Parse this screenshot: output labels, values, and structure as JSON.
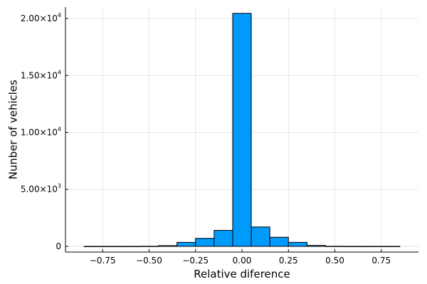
{
  "chart_data": {
    "type": "bar",
    "xlabel": "Relative diference",
    "ylabel": "Nunber of vehicles",
    "bin_edges": [
      -0.85,
      -0.75,
      -0.65,
      -0.55,
      -0.45,
      -0.35,
      -0.25,
      -0.15,
      -0.05,
      0.05,
      0.15,
      0.25,
      0.35,
      0.45,
      0.55,
      0.65,
      0.75,
      0.85
    ],
    "values": [
      0,
      0,
      0,
      10,
      60,
      350,
      700,
      1400,
      20450,
      1700,
      800,
      350,
      80,
      10,
      0,
      0,
      0
    ],
    "xlim": [
      -0.95,
      0.95
    ],
    "ylim": [
      -500,
      21000
    ],
    "xticks": [
      -0.75,
      -0.5,
      -0.25,
      0.0,
      0.25,
      0.5,
      0.75
    ],
    "xtick_labels": [
      "−0.75",
      "−0.50",
      "−0.25",
      "0.00",
      "0.25",
      "0.50",
      "0.75"
    ],
    "yticks": [
      0,
      5000,
      10000,
      15000,
      20000
    ],
    "ytick_labels": [
      {
        "base": "0",
        "exp": ""
      },
      {
        "base": "5.00×10",
        "exp": "3"
      },
      {
        "base": "1.00×10",
        "exp": "4"
      },
      {
        "base": "1.50×10",
        "exp": "4"
      },
      {
        "base": "2.00×10",
        "exp": "4"
      }
    ],
    "grid": true,
    "legend": "none",
    "bar_color": "#009AFA",
    "grid_color": "#E6E6E6"
  }
}
